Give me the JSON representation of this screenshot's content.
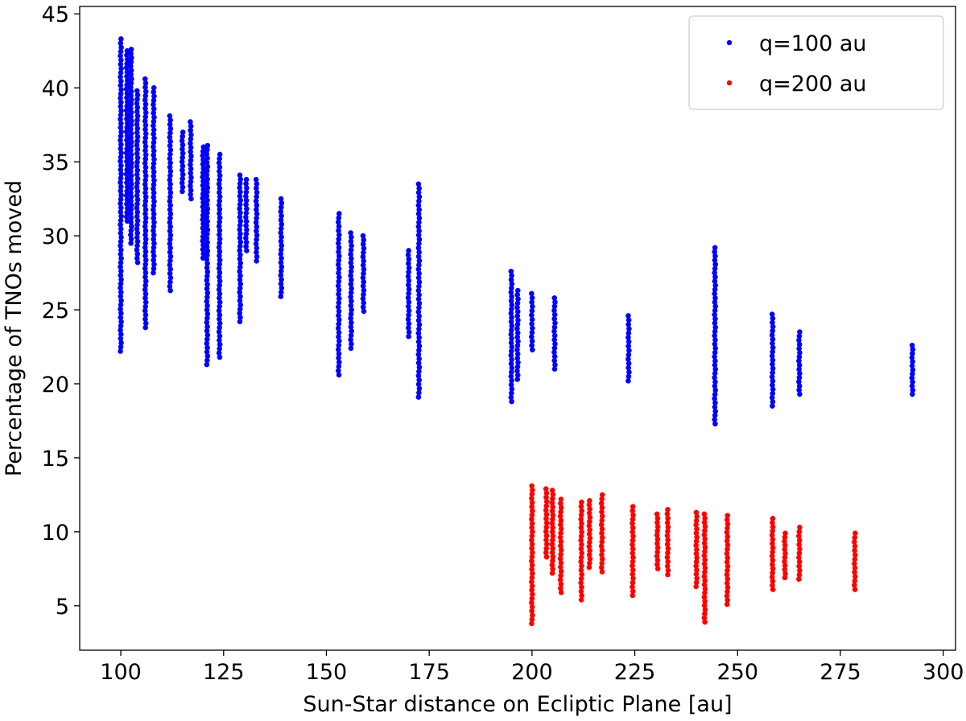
{
  "chart_data": {
    "type": "scatter",
    "title": "",
    "xlabel": "Sun-Star distance on Ecliptic Plane [au]",
    "ylabel": "Percentage of TNOs moved",
    "xlim": [
      90,
      303
    ],
    "ylim": [
      2,
      45.5
    ],
    "xticks": [
      100,
      125,
      150,
      175,
      200,
      225,
      250,
      275,
      300
    ],
    "yticks": [
      5,
      10,
      15,
      20,
      25,
      30,
      35,
      40,
      45
    ],
    "grid": false,
    "legend_position": "top-right",
    "series": [
      {
        "name": "q=100 au",
        "color": "#0000ff",
        "groups": [
          {
            "x": 100,
            "y_range": [
              22.2,
              43.3
            ]
          },
          {
            "x": 101.5,
            "y_range": [
              31,
              42.5
            ]
          },
          {
            "x": 102.5,
            "y_range": [
              29.5,
              42.6
            ]
          },
          {
            "x": 104,
            "y_range": [
              28.2,
              39.8
            ]
          },
          {
            "x": 106,
            "y_range": [
              23.8,
              40.6
            ]
          },
          {
            "x": 108,
            "y_range": [
              27.5,
              40
            ]
          },
          {
            "x": 112,
            "y_range": [
              26.3,
              38.1
            ]
          },
          {
            "x": 115,
            "y_range": [
              33,
              37
            ]
          },
          {
            "x": 117,
            "y_range": [
              32.5,
              37.7
            ]
          },
          {
            "x": 120,
            "y_range": [
              28.5,
              36
            ]
          },
          {
            "x": 121,
            "y_range": [
              21.3,
              36.1
            ]
          },
          {
            "x": 124,
            "y_range": [
              21.8,
              35.5
            ]
          },
          {
            "x": 129,
            "y_range": [
              24.2,
              34.1
            ]
          },
          {
            "x": 130.5,
            "y_range": [
              29,
              33.8
            ]
          },
          {
            "x": 133,
            "y_range": [
              28.3,
              33.8
            ]
          },
          {
            "x": 139,
            "y_range": [
              25.9,
              32.5
            ]
          },
          {
            "x": 153,
            "y_range": [
              20.6,
              31.5
            ]
          },
          {
            "x": 156,
            "y_range": [
              22.4,
              30.2
            ]
          },
          {
            "x": 159,
            "y_range": [
              24.9,
              30
            ]
          },
          {
            "x": 170,
            "y_range": [
              23.2,
              29
            ]
          },
          {
            "x": 172.5,
            "y_range": [
              19.1,
              33.5
            ]
          },
          {
            "x": 195,
            "y_range": [
              18.8,
              27.6
            ]
          },
          {
            "x": 196.5,
            "y_range": [
              20.3,
              26.3
            ]
          },
          {
            "x": 200,
            "y_range": [
              22.3,
              26.1
            ]
          },
          {
            "x": 205.5,
            "y_range": [
              21,
              25.8
            ]
          },
          {
            "x": 223.5,
            "y_range": [
              20.2,
              24.6
            ]
          },
          {
            "x": 244.5,
            "y_range": [
              17.3,
              29.2
            ]
          },
          {
            "x": 258.5,
            "y_range": [
              18.5,
              24.7
            ]
          },
          {
            "x": 265,
            "y_range": [
              19.3,
              23.5
            ]
          },
          {
            "x": 292.5,
            "y_range": [
              19.3,
              22.6
            ]
          }
        ]
      },
      {
        "name": "q=200 au",
        "color": "#ff0000",
        "groups": [
          {
            "x": 200,
            "y_range": [
              3.8,
              13.1
            ]
          },
          {
            "x": 203.5,
            "y_range": [
              8.3,
              12.9
            ]
          },
          {
            "x": 205,
            "y_range": [
              7.2,
              12.8
            ]
          },
          {
            "x": 207,
            "y_range": [
              5.9,
              12.2
            ]
          },
          {
            "x": 212,
            "y_range": [
              5.4,
              12
            ]
          },
          {
            "x": 214,
            "y_range": [
              7.6,
              12.1
            ]
          },
          {
            "x": 217,
            "y_range": [
              7.3,
              12.5
            ]
          },
          {
            "x": 224.5,
            "y_range": [
              5.7,
              11.7
            ]
          },
          {
            "x": 230.5,
            "y_range": [
              7.5,
              11.2
            ]
          },
          {
            "x": 233,
            "y_range": [
              7.1,
              11.5
            ]
          },
          {
            "x": 240,
            "y_range": [
              6.3,
              11.3
            ]
          },
          {
            "x": 242,
            "y_range": [
              3.9,
              11.2
            ]
          },
          {
            "x": 247.5,
            "y_range": [
              5.1,
              11.1
            ]
          },
          {
            "x": 258.5,
            "y_range": [
              6.1,
              10.9
            ]
          },
          {
            "x": 261.5,
            "y_range": [
              6.9,
              9.9
            ]
          },
          {
            "x": 265,
            "y_range": [
              6.8,
              10.3
            ]
          },
          {
            "x": 278.5,
            "y_range": [
              6.1,
              9.9
            ]
          }
        ]
      }
    ]
  }
}
